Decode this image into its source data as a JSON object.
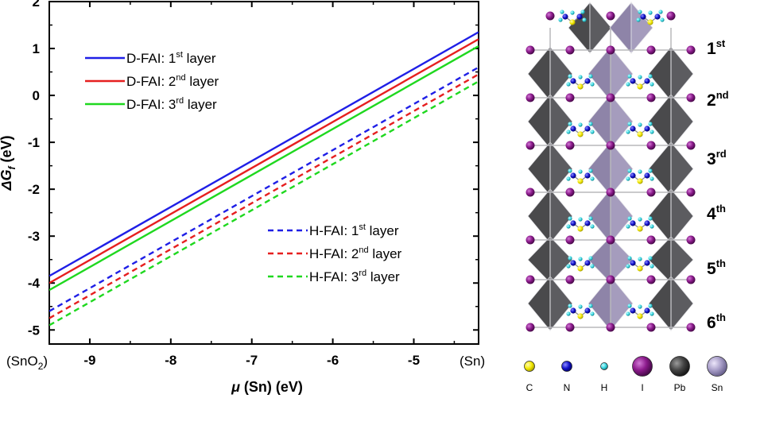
{
  "chart_data": {
    "type": "line",
    "xlabel_prefix": "μ",
    "xlabel_rest": " (Sn) (eV)",
    "ylabel_main": "ΔG",
    "ylabel_sub": "f",
    "ylabel_unit": " (eV)",
    "xlim": [
      -9.5,
      -4.2
    ],
    "ylim": [
      -5.3,
      2.0
    ],
    "xticks": [
      -9,
      -8,
      -7,
      -6,
      -5
    ],
    "xtick_labels": [
      "-9",
      "-8",
      "-7",
      "-6",
      "-5"
    ],
    "yticks": [
      -5,
      -4,
      -3,
      -2,
      -1,
      0,
      1,
      2
    ],
    "ytick_labels": [
      "-5",
      "-4",
      "-3",
      "-2",
      "-1",
      "0",
      "1",
      "2"
    ],
    "x_end_labels": {
      "left_main": "(SnO",
      "left_sub": "2",
      "left_close": ")",
      "right": "(Sn)"
    },
    "series": [
      {
        "name_pre": "D-FAI: 1",
        "name_sup": "st",
        "name_post": " layer",
        "color": "#1f1fe6",
        "dash": false,
        "x": [
          -9.5,
          -4.2
        ],
        "y": [
          -3.85,
          1.35
        ]
      },
      {
        "name_pre": "D-FAI: 2",
        "name_sup": "nd",
        "name_post": " layer",
        "color": "#e61f1f",
        "dash": false,
        "x": [
          -9.5,
          -4.2
        ],
        "y": [
          -4.0,
          1.2
        ]
      },
      {
        "name_pre": "D-FAI: 3",
        "name_sup": "rd",
        "name_post": " layer",
        "color": "#1fd81f",
        "dash": false,
        "x": [
          -9.5,
          -4.2
        ],
        "y": [
          -4.15,
          1.05
        ]
      },
      {
        "name_pre": "H-FAI: 1",
        "name_sup": "st",
        "name_post": " layer",
        "color": "#1f1fe6",
        "dash": true,
        "x": [
          -9.5,
          -4.2
        ],
        "y": [
          -4.6,
          0.6
        ]
      },
      {
        "name_pre": "H-FAI: 2",
        "name_sup": "nd",
        "name_post": " layer",
        "color": "#e61f1f",
        "dash": true,
        "x": [
          -9.5,
          -4.2
        ],
        "y": [
          -4.75,
          0.45
        ]
      },
      {
        "name_pre": "H-FAI: 3",
        "name_sup": "rd",
        "name_post": " layer",
        "color": "#1fd81f",
        "dash": true,
        "x": [
          -9.5,
          -4.2
        ],
        "y": [
          -4.9,
          0.3
        ]
      }
    ]
  },
  "structure": {
    "layer_labels": [
      {
        "main": "1",
        "sup": "st"
      },
      {
        "main": "2",
        "sup": "nd"
      },
      {
        "main": "3",
        "sup": "rd"
      },
      {
        "main": "4",
        "sup": "th"
      },
      {
        "main": "5",
        "sup": "th"
      },
      {
        "main": "6",
        "sup": "th"
      }
    ],
    "elements": [
      {
        "symbol": "C",
        "color": "#f2e800",
        "kind": "atom-small"
      },
      {
        "symbol": "N",
        "color": "#1010c8",
        "kind": "atom-small"
      },
      {
        "symbol": "H",
        "color": "#38d6e0",
        "kind": "atom-tiny"
      },
      {
        "symbol": "I",
        "color": "#8b1a8b",
        "kind": "atom-large"
      },
      {
        "symbol": "Pb",
        "color": "#444444",
        "kind": "atom-large"
      },
      {
        "symbol": "Sn",
        "color": "#a89ec8",
        "kind": "atom-large"
      }
    ],
    "colors": {
      "pb_octahedron": "#4a4a4c",
      "sn_octahedron": "#8e84a8",
      "iodine": "#7a1880"
    }
  }
}
